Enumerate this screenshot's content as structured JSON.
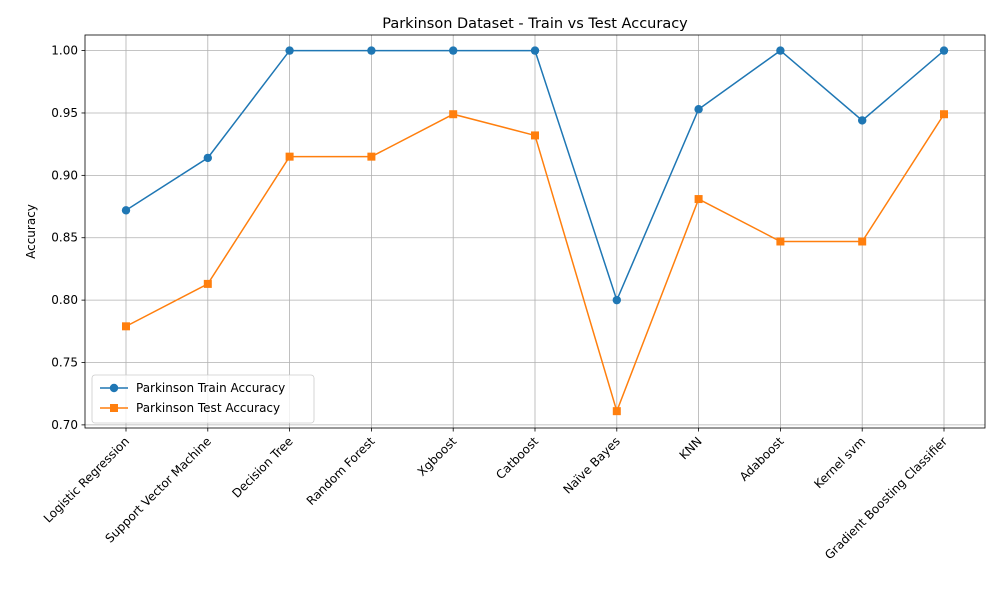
{
  "chart_data": {
    "type": "line",
    "title": "Parkinson Dataset - Train vs Test Accuracy",
    "xlabel": "",
    "ylabel": "Accuracy",
    "categories": [
      "Logistic Regression",
      "Support Vector Machine",
      "Decision Tree",
      "Random Forest",
      "Xgboost",
      "Catboost",
      "Naïve Bayes",
      "KNN",
      "Adaboost",
      "Kernel svm",
      "Gradient Boosting Classifier"
    ],
    "ylim": [
      0.6975,
      1.0125
    ],
    "yticks": [
      "0.70",
      "0.75",
      "0.80",
      "0.85",
      "0.90",
      "0.95",
      "1.00"
    ],
    "ytick_values": [
      0.7,
      0.75,
      0.8,
      0.85,
      0.9,
      0.95,
      1.0
    ],
    "grid": true,
    "legend_position": "bottom-left",
    "series": [
      {
        "name": "Parkinson Train Accuracy",
        "color": "#1f77b4",
        "marker": "circle",
        "values": [
          0.872,
          0.914,
          1.0,
          1.0,
          1.0,
          1.0,
          0.8,
          0.953,
          1.0,
          0.944,
          1.0
        ]
      },
      {
        "name": "Parkinson Test Accuracy",
        "color": "#ff7f0e",
        "marker": "square",
        "values": [
          0.779,
          0.813,
          0.915,
          0.915,
          0.949,
          0.932,
          0.711,
          0.881,
          0.847,
          0.847,
          0.949
        ]
      }
    ]
  }
}
